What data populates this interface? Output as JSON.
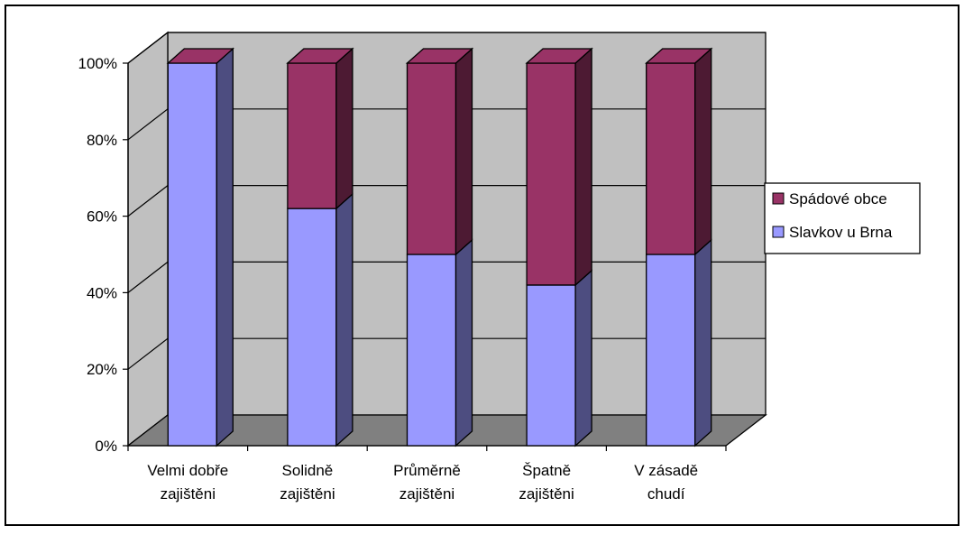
{
  "chart_data": {
    "type": "bar",
    "stacked": "percent",
    "three_d": true,
    "categories": [
      [
        "Velmi dobře",
        "zajištěni"
      ],
      [
        "Solidně",
        "zajištěni"
      ],
      [
        "Průměrně",
        "zajištěni"
      ],
      [
        "Špatně",
        "zajištěni"
      ],
      [
        "V zásadě",
        "chudí"
      ]
    ],
    "series": [
      {
        "name": "Slavkov u Brna",
        "color": "#9999FF",
        "values": [
          100,
          62,
          50,
          42,
          50
        ]
      },
      {
        "name": "Spádové obce",
        "color": "#993366",
        "values": [
          0,
          38,
          50,
          58,
          50
        ]
      }
    ],
    "y_ticks": [
      "0%",
      "20%",
      "40%",
      "60%",
      "80%",
      "100%"
    ],
    "ylim": [
      0,
      100
    ],
    "grid": true,
    "legend": {
      "position": "right",
      "entries": [
        {
          "label": "Spádové obce",
          "color": "#993366"
        },
        {
          "label": "Slavkov u Brna",
          "color": "#9999FF"
        }
      ]
    },
    "colors": {
      "wall": "#C0C0C0",
      "floor": "#808080",
      "frame": "#000000"
    }
  }
}
